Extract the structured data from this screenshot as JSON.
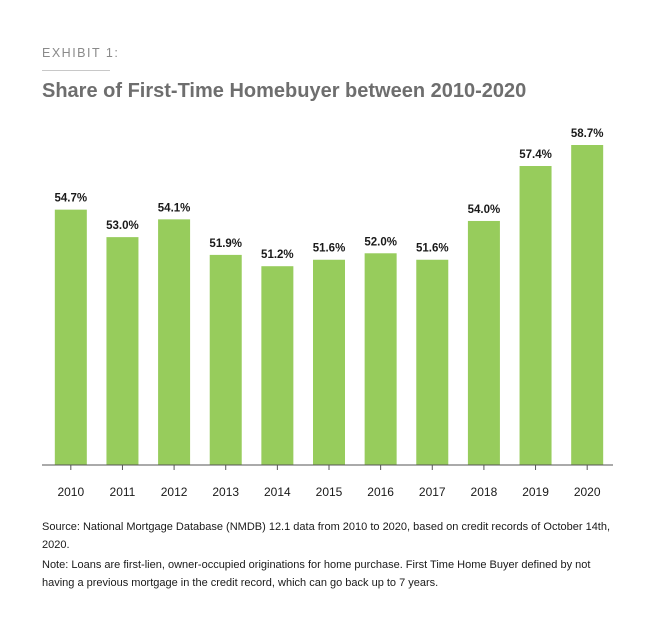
{
  "header": {
    "exhibit": "EXHIBIT 1:",
    "title": "Share of First-Time Homebuyer between 2010-2020"
  },
  "footer": {
    "source": "Source: National Mortgage Database (NMDB) 12.1 data from 2010 to 2020, based on credit records of October 14th, 2020.",
    "note": "Note: Loans are first-lien, owner-occupied originations for home purchase. First Time Home Buyer defined by not having a previous mortgage in the credit record, which can go back up to 7 years."
  },
  "colors": {
    "bar": "#97cc5c",
    "axis": "#555555"
  },
  "chart_data": {
    "type": "bar",
    "title": "Share of First-Time Homebuyer between 2010-2020",
    "xlabel": "",
    "ylabel": "",
    "categories": [
      "2010",
      "2011",
      "2012",
      "2013",
      "2014",
      "2015",
      "2016",
      "2017",
      "2018",
      "2019",
      "2020"
    ],
    "values": [
      54.7,
      53.0,
      54.1,
      51.9,
      51.2,
      51.6,
      52.0,
      51.6,
      54.0,
      57.4,
      58.7
    ],
    "value_labels": [
      "54.7%",
      "53.0%",
      "54.1%",
      "51.9%",
      "51.2%",
      "51.6%",
      "52.0%",
      "51.6%",
      "54.0%",
      "57.4%",
      "58.7%"
    ],
    "ylim": [
      38.9,
      58.7
    ],
    "grid": false,
    "legend": "none"
  }
}
